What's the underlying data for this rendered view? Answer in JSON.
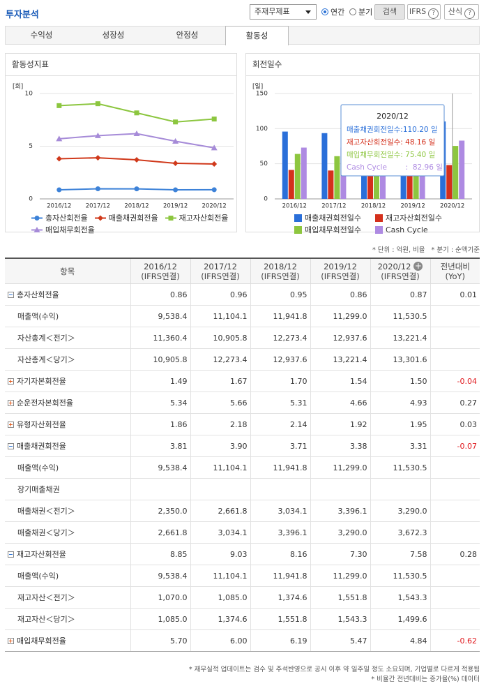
{
  "header": {
    "title": "투자분석",
    "select": "주재무제표",
    "radios": [
      "연간",
      "분기"
    ],
    "selected_radio": 0,
    "buttons": [
      "검색",
      "IFRS",
      "산식"
    ]
  },
  "tabs": {
    "items": [
      "수익성",
      "성장성",
      "안정성",
      "활동성"
    ],
    "active": 3
  },
  "chart_data": [
    {
      "type": "line",
      "title": "활동성지표",
      "y_unit": "[회]",
      "categories": [
        "2016/12",
        "2017/12",
        "2018/12",
        "2019/12",
        "2020/12"
      ],
      "ylim": [
        0,
        10
      ],
      "yticks": [
        0,
        5,
        10
      ],
      "grid": true,
      "series": [
        {
          "name": "총자산회전율",
          "color": "#3d82d8",
          "marker": "circle",
          "values": [
            0.86,
            0.96,
            0.95,
            0.86,
            0.87
          ]
        },
        {
          "name": "매출채권회전율",
          "color": "#d0391b",
          "marker": "diamond",
          "values": [
            3.81,
            3.9,
            3.71,
            3.38,
            3.31
          ]
        },
        {
          "name": "재고자산회전율",
          "color": "#8cc63f",
          "marker": "square",
          "values": [
            8.85,
            9.03,
            8.16,
            7.3,
            7.58
          ]
        },
        {
          "name": "매입채무회전율",
          "color": "#a68bd8",
          "marker": "triangle",
          "values": [
            5.7,
            6.0,
            6.19,
            5.47,
            4.84
          ]
        }
      ]
    },
    {
      "type": "bar",
      "title": "회전일수",
      "y_unit": "[일]",
      "categories": [
        "2016/12",
        "2017/12",
        "2018/12",
        "2019/12",
        "2020/12"
      ],
      "ylim": [
        0,
        150
      ],
      "yticks": [
        0,
        50,
        100,
        150
      ],
      "grid": true,
      "series": [
        {
          "name": "매출채권회전일수",
          "color": "#2a6fd9",
          "values": [
            95.8,
            93.6,
            98.4,
            108.0,
            110.2
          ]
        },
        {
          "name": "재고자산회전일수",
          "color": "#d4301c",
          "values": [
            41.2,
            40.4,
            44.7,
            50.0,
            48.16
          ]
        },
        {
          "name": "매입채무회전일수",
          "color": "#8dc63f",
          "values": [
            64.0,
            60.8,
            59.0,
            66.7,
            75.4
          ]
        },
        {
          "name": "Cash Cycle",
          "color": "#ae8ae2",
          "values": [
            73.0,
            73.2,
            84.1,
            91.3,
            82.96
          ]
        }
      ],
      "tooltip": {
        "title": "2020/12",
        "items": [
          "매출채권회전일수:110.20 일",
          "재고자산회전일수: 48.16 일",
          "매입채무회전일수: 75.40 일",
          "Cash Cycle        :  82.96 일"
        ]
      }
    }
  ],
  "unit_note": "* 단위 : 억원, 비율   * 분기 : 순액기준",
  "table": {
    "columns": [
      {
        "period": "항목"
      },
      {
        "period": "2016/12",
        "basis": "(IFRS연결)"
      },
      {
        "period": "2017/12",
        "basis": "(IFRS연결)"
      },
      {
        "period": "2018/12",
        "basis": "(IFRS연결)"
      },
      {
        "period": "2019/12",
        "basis": "(IFRS연결)"
      },
      {
        "period": "2020/12",
        "basis": "(IFRS연결)"
      },
      {
        "period": "전년대비",
        "basis": "(YoY)"
      }
    ],
    "rows": [
      {
        "label": "총자산회전율",
        "toggle": "minus",
        "cells": [
          "0.86",
          "0.96",
          "0.95",
          "0.86",
          "0.87",
          "0.01"
        ]
      },
      {
        "label": "매출액(수익)",
        "cells": [
          "9,538.4",
          "11,104.1",
          "11,941.8",
          "11,299.0",
          "11,530.5",
          null
        ]
      },
      {
        "label": "자산총계＜전기＞",
        "cells": [
          "11,360.4",
          "10,905.8",
          "12,273.4",
          "12,937.6",
          "13,221.4",
          null
        ]
      },
      {
        "label": "자산총계＜당기＞",
        "cells": [
          "10,905.8",
          "12,273.4",
          "12,937.6",
          "13,221.4",
          "13,301.6",
          null
        ]
      },
      {
        "label": "자기자본회전율",
        "toggle": "plus",
        "cells": [
          "1.49",
          "1.67",
          "1.70",
          "1.54",
          "1.50",
          "-0.04"
        ]
      },
      {
        "label": "순운전자본회전율",
        "toggle": "plus",
        "cells": [
          "5.34",
          "5.66",
          "5.31",
          "4.66",
          "4.93",
          "0.27"
        ]
      },
      {
        "label": "유형자산회전율",
        "toggle": "plus",
        "cells": [
          "1.86",
          "2.18",
          "2.14",
          "1.92",
          "1.95",
          "0.03"
        ]
      },
      {
        "label": "매출채권회전율",
        "toggle": "minus",
        "cells": [
          "3.81",
          "3.90",
          "3.71",
          "3.38",
          "3.31",
          "-0.07"
        ]
      },
      {
        "label": "매출액(수익)",
        "cells": [
          "9,538.4",
          "11,104.1",
          "11,941.8",
          "11,299.0",
          "11,530.5",
          null
        ]
      },
      {
        "label": "장기매출채권",
        "cells": [
          null,
          null,
          null,
          null,
          null,
          null
        ]
      },
      {
        "label": "매출채권＜전기＞",
        "cells": [
          "2,350.0",
          "2,661.8",
          "3,034.1",
          "3,396.1",
          "3,290.0",
          null
        ]
      },
      {
        "label": "매출채권＜당기＞",
        "cells": [
          "2,661.8",
          "3,034.1",
          "3,396.1",
          "3,290.0",
          "3,672.3",
          null
        ]
      },
      {
        "label": "재고자산회전율",
        "toggle": "minus",
        "cells": [
          "8.85",
          "9.03",
          "8.16",
          "7.30",
          "7.58",
          "0.28"
        ]
      },
      {
        "label": "매출액(수익)",
        "cells": [
          "9,538.4",
          "11,104.1",
          "11,941.8",
          "11,299.0",
          "11,530.5",
          null
        ]
      },
      {
        "label": "재고자산＜전기＞",
        "cells": [
          "1,070.0",
          "1,085.0",
          "1,374.6",
          "1,551.8",
          "1,543.3",
          null
        ]
      },
      {
        "label": "재고자산＜당기＞",
        "cells": [
          "1,085.0",
          "1,374.6",
          "1,551.8",
          "1,543.3",
          "1,499.6",
          null
        ]
      },
      {
        "label": "매입채무회전율",
        "toggle": "plus",
        "cells": [
          "5.70",
          "6.00",
          "6.19",
          "5.47",
          "4.84",
          "-0.62"
        ]
      }
    ]
  },
  "footnotes": [
    "* 재무실적 업데이트는 검수 및 주석반영으로 공시 이후 약 일주일 정도 소요되며, 기업별로 다르게 적용됨",
    "* 비율간 전년대비는 증가율(%) 데이터"
  ]
}
